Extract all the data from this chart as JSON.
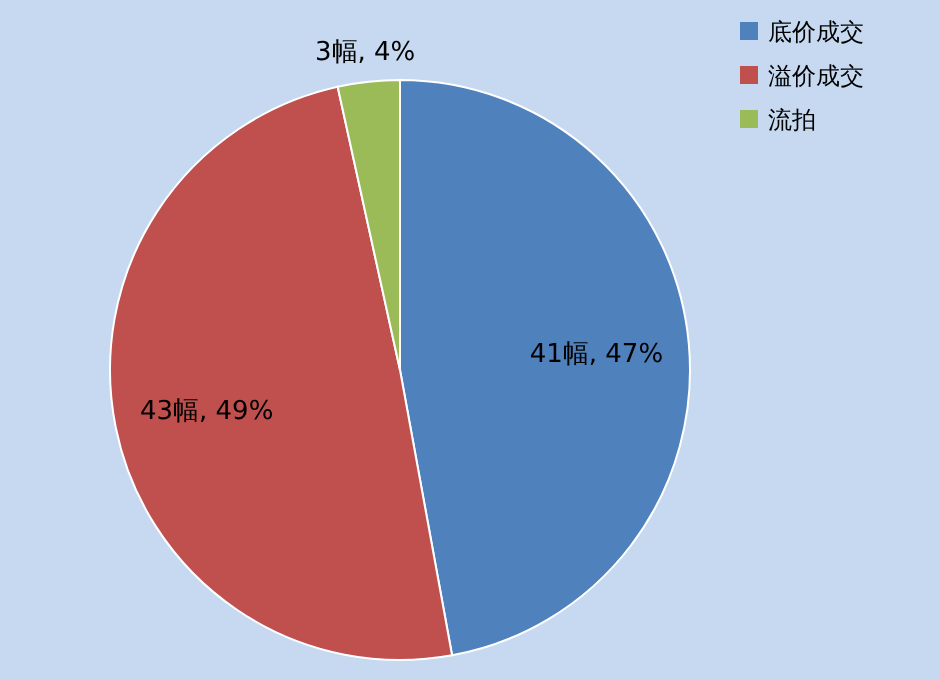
{
  "chart_data": {
    "type": "pie",
    "categories": [
      "底价成交",
      "溢价成交",
      "流拍"
    ],
    "values": [
      41,
      43,
      3
    ],
    "colors": [
      "#4f81bd",
      "#c0504d",
      "#9bbb59"
    ],
    "value_labels": [
      "41幅, 47%",
      "43幅, 49%",
      "3幅, 4%"
    ],
    "legend": "top right"
  }
}
